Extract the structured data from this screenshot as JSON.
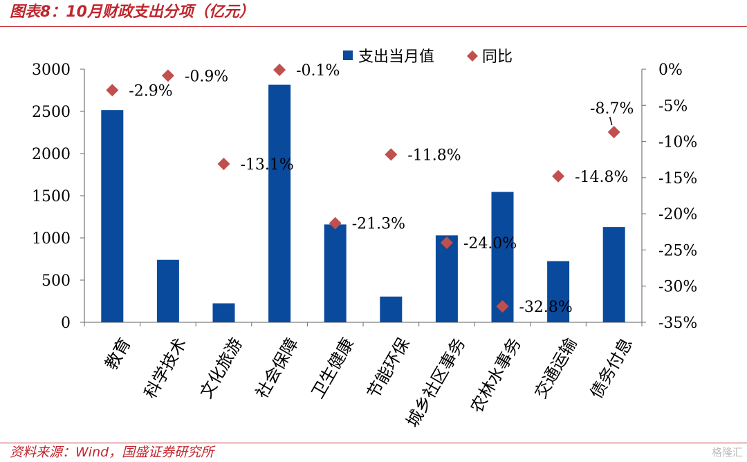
{
  "header": {
    "title": "图表8：10月财政支出分项（亿元）"
  },
  "footer": {
    "source": "资料来源：Wind，国盛证券研究所",
    "watermark": "格隆汇"
  },
  "chart_data": {
    "type": "bar",
    "title": "图表8：10月财政支出分项（亿元）",
    "categories": [
      "教育",
      "科学技术",
      "文化旅游",
      "社会保障",
      "卫生健康",
      "节能环保",
      "城乡社区事务",
      "农林水事务",
      "交通运输",
      "债务付息"
    ],
    "series": [
      {
        "name": "支出当月值",
        "type": "bar",
        "axis": "left",
        "color": "#0a4a9c",
        "values": [
          2515,
          740,
          225,
          2815,
          1160,
          305,
          1030,
          1545,
          725,
          1130
        ]
      },
      {
        "name": "同比",
        "type": "scatter",
        "axis": "right",
        "color": "#c0504d",
        "values": [
          -2.9,
          -0.9,
          -13.1,
          -0.1,
          -21.3,
          -11.8,
          -24.0,
          -32.8,
          -14.8,
          -8.7
        ],
        "labels": [
          "-2.9%",
          "-0.9%",
          "-13.1%",
          "-0.1%",
          "-21.3%",
          "-11.8%",
          "-24.0%",
          "-32.8%",
          "-14.8%",
          "-8.7%"
        ]
      }
    ],
    "y_left": {
      "min": 0,
      "max": 3000,
      "ticks": [
        0,
        500,
        1000,
        1500,
        2000,
        2500,
        3000
      ],
      "tick_labels": [
        "0",
        "500",
        "1000",
        "1500",
        "2000",
        "2500",
        "3000"
      ]
    },
    "y_right": {
      "min": -35,
      "max": 0,
      "ticks": [
        0,
        -5,
        -10,
        -15,
        -20,
        -25,
        -30,
        -35
      ],
      "tick_labels": [
        "0%",
        "-5%",
        "-10%",
        "-15%",
        "-20%",
        "-25%",
        "-30%",
        "-35%"
      ]
    },
    "legend": {
      "placement": "top",
      "items": [
        "支出当月值",
        "同比"
      ]
    },
    "grid": false
  }
}
